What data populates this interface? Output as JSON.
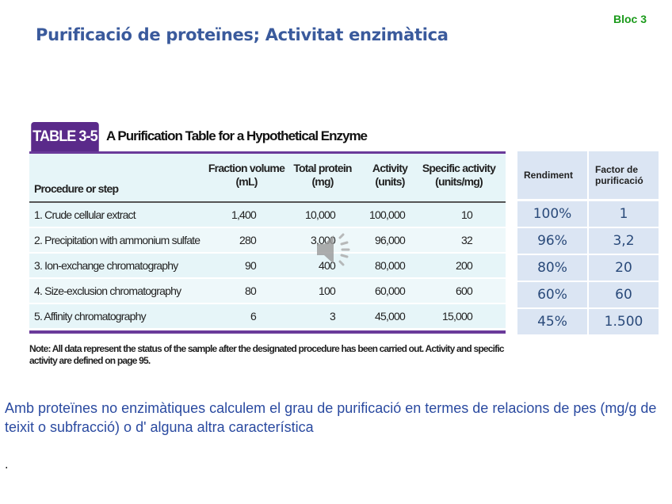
{
  "slide": {
    "title": "Purificació de proteïnes; Activitat enzimàtica",
    "bloc": "Bloc 3",
    "paragraph": "Amb proteïnes no enzimàtiques calculem el grau de purificació en termes de relacions de pes (mg/g de teixit o subfracció) o d' alguna altra característica",
    "trailing": "."
  },
  "table": {
    "badge": "TABLE 3-5",
    "title": "A Purification Table for a Hypothetical Enzyme",
    "headers": [
      [
        "Procedure or step",
        ""
      ],
      [
        "Fraction volume",
        "(mL)"
      ],
      [
        "Total protein",
        "(mg)"
      ],
      [
        "Activity",
        "(units)"
      ],
      [
        "Specific activity",
        "(units/mg)"
      ]
    ],
    "rows": [
      [
        "1. Crude cellular extract",
        "1,400",
        "10,000",
        "100,000",
        "10"
      ],
      [
        "2. Precipitation with ammonium sulfate",
        "280",
        "3,000",
        "96,000",
        "32"
      ],
      [
        "3. Ion-exchange chromatography",
        "90",
        "400",
        "80,000",
        "200"
      ],
      [
        "4. Size-exclusion chromatography",
        "80",
        "100",
        "60,000",
        "600"
      ],
      [
        "5. Affinity chromatography",
        "6",
        "3",
        "45,000",
        "15,000"
      ]
    ],
    "note": "Note: All data represent the status of the sample after the designated procedure has been carried out. Activity and specific activity are defined on page 95."
  },
  "side_table": {
    "headers": [
      "Rendiment",
      "Factor de purificació"
    ],
    "rows": [
      [
        "100%",
        "1"
      ],
      [
        "96%",
        "3,2"
      ],
      [
        "80%",
        "20"
      ],
      [
        "60%",
        "60"
      ],
      [
        "45%",
        "1.500"
      ]
    ]
  },
  "icons": {
    "audio": "speaker-icon"
  }
}
